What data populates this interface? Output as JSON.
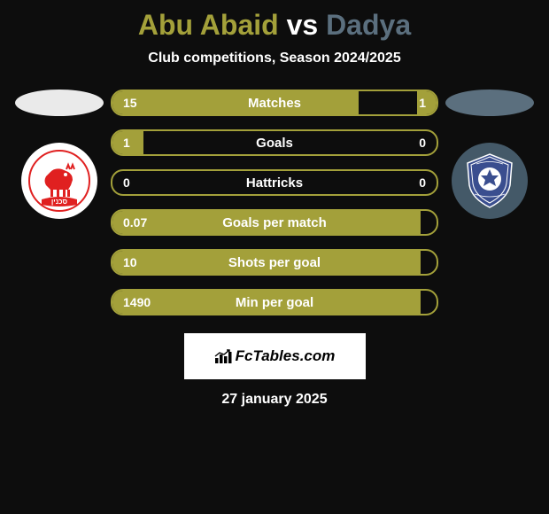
{
  "title": {
    "player1": "Abu Abaid",
    "vs": "vs",
    "player2": "Dadya",
    "color1": "#a3a03a",
    "colorVs": "#ffffff",
    "color2": "#5b6f7e"
  },
  "subtitle": "Club competitions, Season 2024/2025",
  "left_side": {
    "ellipse_color": "#eaeaea",
    "badge_bg": "#ffffff"
  },
  "right_side": {
    "ellipse_color": "#5b6f7e",
    "badge_bg": "#445968"
  },
  "stats": {
    "border_color": "#a3a03a",
    "fill_color": "#a3a03a",
    "rows": [
      {
        "label": "Matches",
        "left": "15",
        "right": "1",
        "leftPct": 76,
        "rightPct": 6
      },
      {
        "label": "Goals",
        "left": "1",
        "right": "0",
        "leftPct": 9.5,
        "rightPct": 0
      },
      {
        "label": "Hattricks",
        "left": "0",
        "right": "0",
        "leftPct": 0,
        "rightPct": 0
      },
      {
        "label": "Goals per match",
        "left": "0.07",
        "right": "",
        "leftPct": 95,
        "rightPct": 0
      },
      {
        "label": "Shots per goal",
        "left": "10",
        "right": "",
        "leftPct": 95,
        "rightPct": 0
      },
      {
        "label": "Min per goal",
        "left": "1490",
        "right": "",
        "leftPct": 95,
        "rightPct": 0
      }
    ]
  },
  "logo_text": "FcTables.com",
  "date": "27 january 2025",
  "background_color": "#0d0d0d"
}
